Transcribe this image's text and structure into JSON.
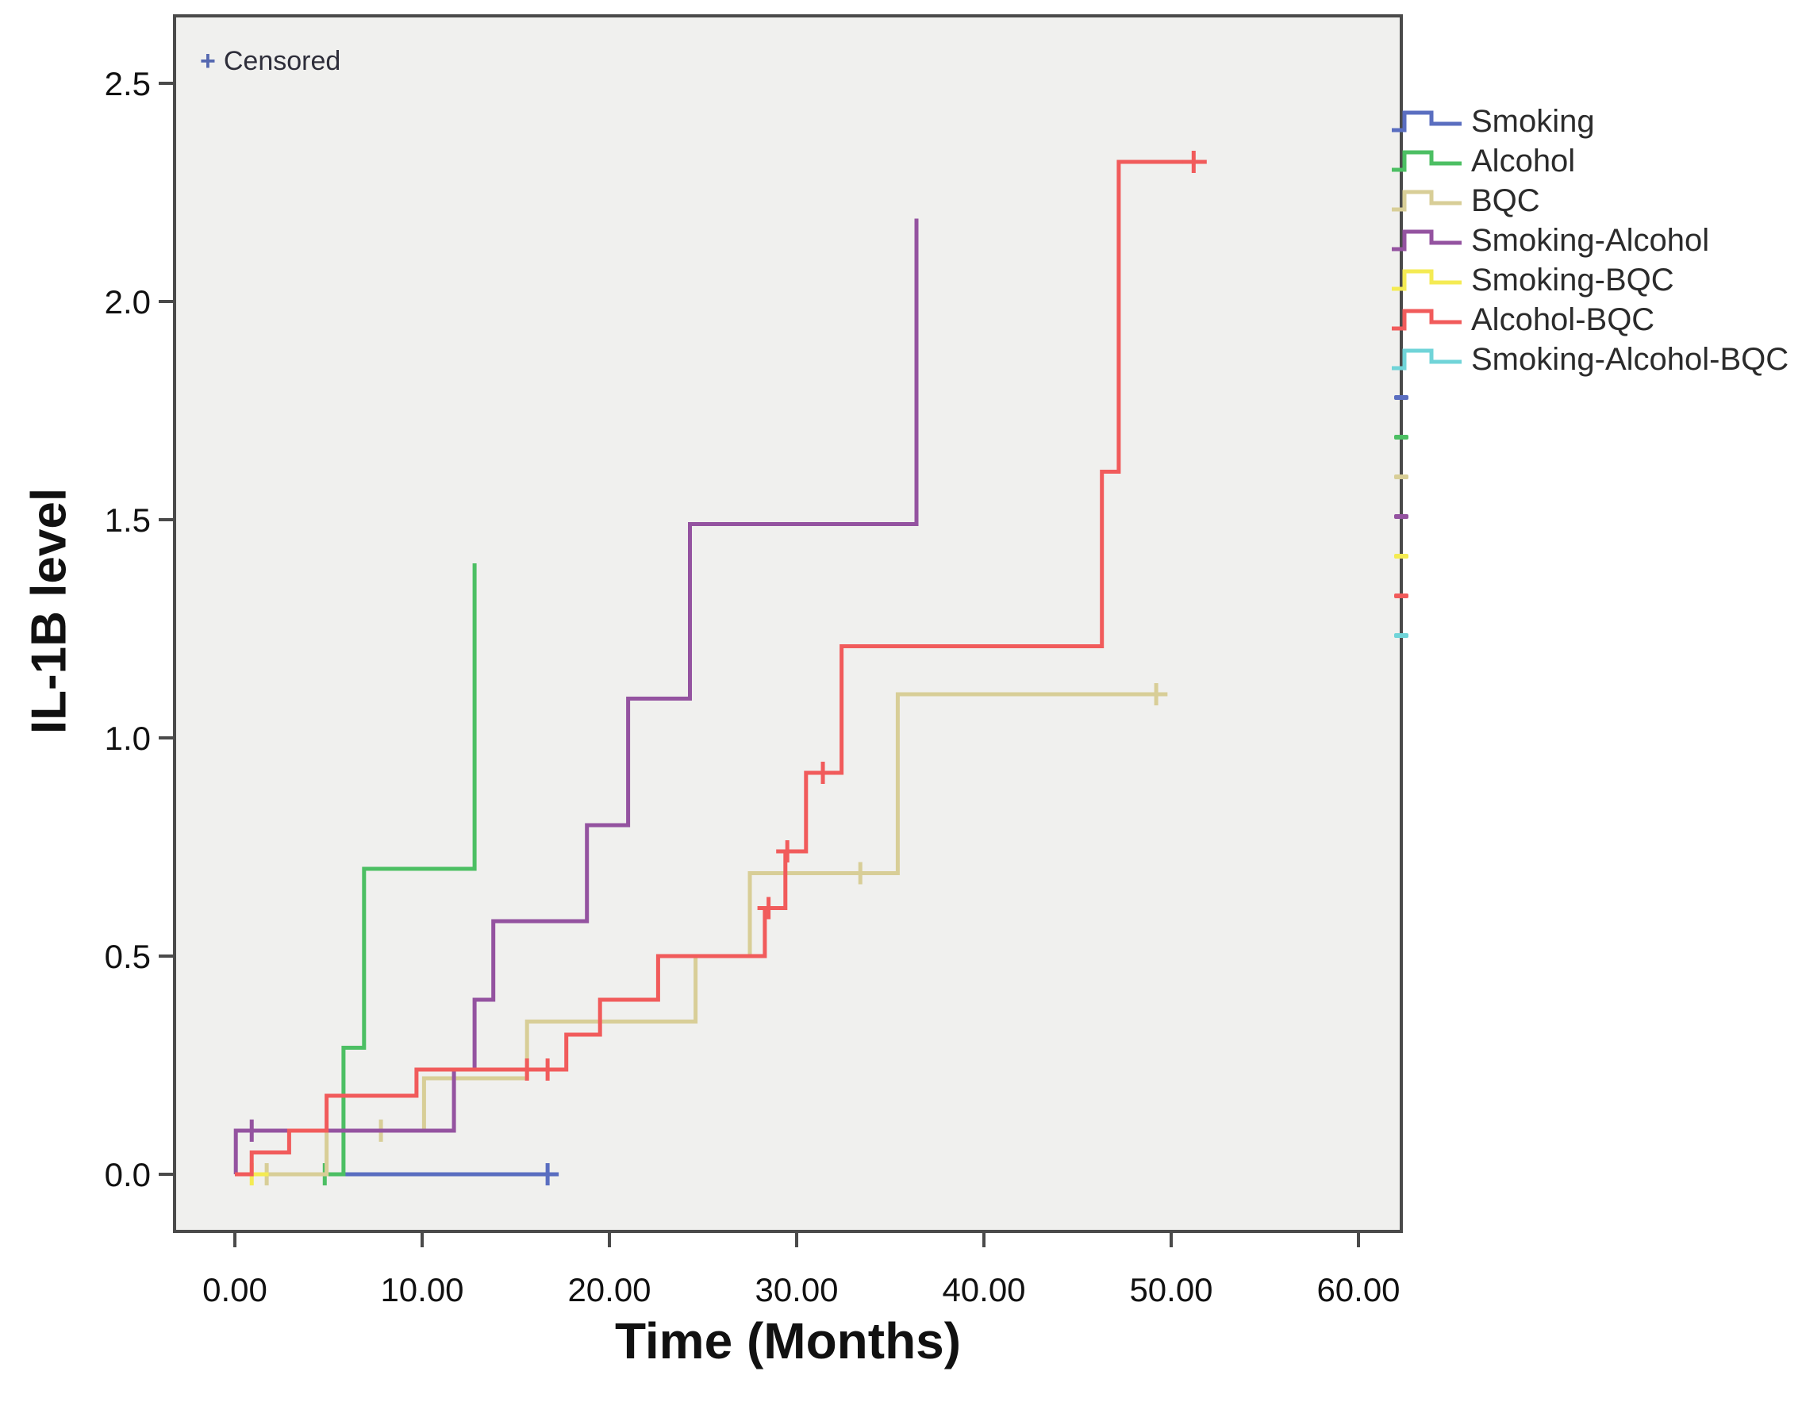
{
  "chart_data": {
    "type": "line",
    "subtype": "step-cumulative-hazard",
    "title": "",
    "xlabel": "Time (Months)",
    "ylabel": "IL-1B level",
    "censored_note": "+ Censored",
    "xlim": [
      -3.2,
      62.3
    ],
    "ylim": [
      -0.13,
      2.66
    ],
    "grid": false,
    "plot_background": "#F0F0EE",
    "border_color": "#4a4a4a",
    "legend_position": "right",
    "xticks": {
      "values": [
        0,
        10,
        20,
        30,
        40,
        50,
        60
      ],
      "labels": [
        "0.00",
        "10.00",
        "20.00",
        "30.00",
        "40.00",
        "50.00",
        "60.00"
      ]
    },
    "yticks": {
      "values": [
        0.0,
        0.5,
        1.0,
        1.5,
        2.0,
        2.5
      ],
      "labels": [
        "0.0",
        "0.5",
        "1.0",
        "1.5",
        "2.0",
        "2.5"
      ]
    },
    "series": [
      {
        "name": "Smoking-Alcohol-BQC",
        "color": "#70D4D8",
        "points": [
          [
            0,
            0
          ],
          [
            1.2,
            0
          ]
        ],
        "censored": []
      },
      {
        "name": "Smoking",
        "color": "#5A6EC0",
        "points": [
          [
            0,
            0
          ],
          [
            16.8,
            0
          ]
        ],
        "censored": [
          [
            16.7,
            0
          ]
        ]
      },
      {
        "name": "Alcohol",
        "color": "#4CBF63",
        "points": [
          [
            0,
            0
          ],
          [
            5.8,
            0
          ],
          [
            5.8,
            0.29
          ],
          [
            6.9,
            0.29
          ],
          [
            6.9,
            0.7
          ],
          [
            12.8,
            0.7
          ],
          [
            12.8,
            1.4
          ]
        ],
        "censored": [
          [
            4.8,
            0
          ]
        ]
      },
      {
        "name": "BQC",
        "color": "#D8CE97",
        "points": [
          [
            0,
            0
          ],
          [
            4.9,
            0
          ],
          [
            4.9,
            0.1
          ],
          [
            10.1,
            0.1
          ],
          [
            10.1,
            0.22
          ],
          [
            15.6,
            0.22
          ],
          [
            15.6,
            0.35
          ],
          [
            24.6,
            0.35
          ],
          [
            24.6,
            0.5
          ],
          [
            27.5,
            0.5
          ],
          [
            27.5,
            0.69
          ],
          [
            35.4,
            0.69
          ],
          [
            35.4,
            1.1
          ],
          [
            49.8,
            1.1
          ]
        ],
        "censored": [
          [
            1.7,
            0
          ],
          [
            7.8,
            0.1
          ],
          [
            33.4,
            0.69
          ],
          [
            49.2,
            1.1
          ]
        ]
      },
      {
        "name": "Smoking-BQC",
        "color": "#F4EB53",
        "points": [
          [
            0,
            0
          ],
          [
            1.8,
            0
          ]
        ],
        "censored": [
          [
            0.9,
            0
          ]
        ]
      },
      {
        "name": "Smoking-Alcohol",
        "color": "#9453A0",
        "points": [
          [
            0.05,
            0
          ],
          [
            0.05,
            0.1
          ],
          [
            11.7,
            0.1
          ],
          [
            11.7,
            0.24
          ],
          [
            12.8,
            0.24
          ],
          [
            12.8,
            0.4
          ],
          [
            13.8,
            0.4
          ],
          [
            13.8,
            0.58
          ],
          [
            18.8,
            0.58
          ],
          [
            18.8,
            0.8
          ],
          [
            21.0,
            0.8
          ],
          [
            21.0,
            1.09
          ],
          [
            24.3,
            1.09
          ],
          [
            24.3,
            1.49
          ],
          [
            36.4,
            1.49
          ],
          [
            36.4,
            2.19
          ]
        ],
        "censored": [
          [
            0.9,
            0.1
          ]
        ]
      },
      {
        "name": "Alcohol-BQC",
        "color": "#F15B5B",
        "points": [
          [
            0,
            0
          ],
          [
            0.9,
            0
          ],
          [
            0.9,
            0.05
          ],
          [
            2.9,
            0.05
          ],
          [
            2.9,
            0.1
          ],
          [
            4.9,
            0.1
          ],
          [
            4.9,
            0.18
          ],
          [
            9.7,
            0.18
          ],
          [
            9.7,
            0.24
          ],
          [
            17.7,
            0.24
          ],
          [
            17.7,
            0.32
          ],
          [
            19.5,
            0.32
          ],
          [
            19.5,
            0.4
          ],
          [
            22.6,
            0.4
          ],
          [
            22.6,
            0.5
          ],
          [
            28.3,
            0.5
          ],
          [
            28.3,
            0.61
          ],
          [
            29.4,
            0.61
          ],
          [
            29.4,
            0.74
          ],
          [
            30.5,
            0.74
          ],
          [
            30.5,
            0.92
          ],
          [
            32.4,
            0.92
          ],
          [
            32.4,
            1.21
          ],
          [
            46.3,
            1.21
          ],
          [
            46.3,
            1.61
          ],
          [
            47.2,
            1.61
          ],
          [
            47.2,
            2.32
          ],
          [
            51.9,
            2.32
          ]
        ],
        "censored": [
          [
            15.6,
            0.24
          ],
          [
            16.7,
            0.24
          ],
          [
            28.5,
            0.61
          ],
          [
            29.5,
            0.74
          ],
          [
            31.4,
            0.92
          ],
          [
            51.2,
            2.32
          ]
        ]
      }
    ],
    "legend_order": [
      "Smoking",
      "Alcohol",
      "BQC",
      "Smoking-Alcohol",
      "Smoking-BQC",
      "Alcohol-BQC",
      "Smoking-Alcohol-BQC"
    ],
    "clipped_censor_legend_marks": [
      "#5A6EC0",
      "#4CBF63",
      "#D8CE97",
      "#9453A0",
      "#F4EB53",
      "#F15B5B",
      "#70D4D8"
    ]
  }
}
